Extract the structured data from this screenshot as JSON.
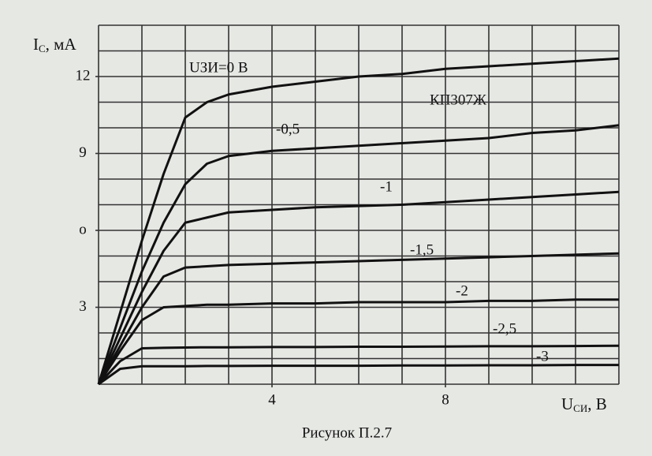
{
  "chart_data": {
    "type": "line",
    "model_label": "КП307Ж",
    "caption": "Рисунок П.2.7",
    "y_label_parts": [
      "I",
      "С",
      ", мА"
    ],
    "x_label_parts": [
      "U",
      "СИ",
      ", В"
    ],
    "x": [
      0,
      0.5,
      1,
      1.5,
      2,
      2.5,
      3,
      4,
      5,
      6,
      7,
      8,
      9,
      10,
      11,
      12
    ],
    "xlim": [
      0,
      12
    ],
    "ylim": [
      0,
      14
    ],
    "xticks": [
      4,
      8
    ],
    "yticks": [
      3,
      {
        "value": 6,
        "label": "о"
      },
      9,
      12
    ],
    "grid": true,
    "x_gridlines": [
      0,
      1,
      2,
      3,
      4,
      5,
      6,
      7,
      8,
      9,
      10,
      11,
      12
    ],
    "y_gridlines": [
      0,
      1,
      2,
      3,
      4,
      5,
      6,
      7,
      8,
      9,
      10,
      11,
      12,
      13,
      14
    ],
    "series": [
      {
        "name": "UЗИ=0 В",
        "color": "#111111",
        "values": [
          0,
          2.8,
          5.6,
          8.2,
          10.4,
          11.0,
          11.3,
          11.6,
          11.8,
          12.0,
          12.1,
          12.3,
          12.4,
          12.5,
          12.6,
          12.7
        ]
      },
      {
        "name": "-0,5",
        "color": "#111111",
        "values": [
          0,
          2.2,
          4.4,
          6.3,
          7.8,
          8.6,
          8.9,
          9.1,
          9.2,
          9.3,
          9.4,
          9.5,
          9.6,
          9.8,
          9.9,
          10.1
        ]
      },
      {
        "name": "-1",
        "color": "#111111",
        "values": [
          0,
          1.8,
          3.6,
          5.2,
          6.3,
          6.5,
          6.7,
          6.8,
          6.9,
          6.95,
          7.0,
          7.1,
          7.2,
          7.3,
          7.4,
          7.5
        ]
      },
      {
        "name": "-1,5",
        "color": "#111111",
        "values": [
          0,
          1.5,
          3.0,
          4.2,
          4.55,
          4.6,
          4.65,
          4.7,
          4.75,
          4.8,
          4.85,
          4.9,
          4.95,
          5.0,
          5.05,
          5.1
        ]
      },
      {
        "name": "-2",
        "color": "#111111",
        "values": [
          0,
          1.3,
          2.5,
          3.0,
          3.05,
          3.1,
          3.1,
          3.15,
          3.15,
          3.2,
          3.2,
          3.2,
          3.25,
          3.25,
          3.3,
          3.3
        ]
      },
      {
        "name": "-2,5",
        "color": "#111111",
        "values": [
          0,
          0.9,
          1.4,
          1.42,
          1.43,
          1.44,
          1.44,
          1.45,
          1.45,
          1.46,
          1.46,
          1.47,
          1.48,
          1.48,
          1.49,
          1.5
        ]
      },
      {
        "name": "-3",
        "color": "#111111",
        "values": [
          0,
          0.6,
          0.7,
          0.7,
          0.7,
          0.71,
          0.71,
          0.72,
          0.72,
          0.72,
          0.73,
          0.73,
          0.74,
          0.74,
          0.75,
          0.75
        ]
      }
    ]
  }
}
